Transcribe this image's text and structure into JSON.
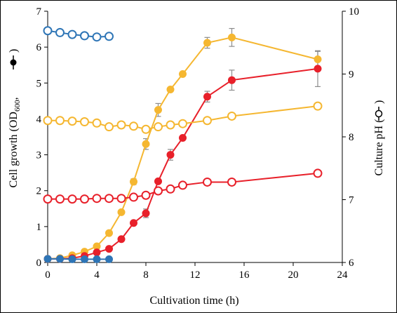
{
  "chart_data": {
    "type": "line",
    "title": "",
    "xlabel": "Cultivation time (h)",
    "ylabel_left": {
      "main": "Cell growth (OD",
      "sub": "600",
      "tail": ", "
    },
    "ylabel_right": "Culture pH (",
    "xlim": [
      0,
      24
    ],
    "xticks": [
      "0",
      "4",
      "8",
      "12",
      "16",
      "20",
      "24"
    ],
    "ylim_left": [
      0,
      7
    ],
    "yticks_left": [
      "0",
      "1",
      "2",
      "3",
      "4",
      "5",
      "6",
      "7"
    ],
    "ylim_right": [
      6,
      10
    ],
    "yticks_right": [
      "6",
      "7",
      "8",
      "9",
      "10"
    ],
    "grid": false,
    "legend": "none",
    "series": [
      {
        "axis": "left",
        "marker": "filled",
        "color": "#f5b731",
        "x": [
          0,
          1,
          2,
          3,
          4,
          5,
          6,
          7,
          8,
          9,
          10,
          11,
          13,
          15,
          22
        ],
        "y": [
          0.1,
          0.12,
          0.2,
          0.3,
          0.45,
          0.82,
          1.4,
          2.25,
          3.3,
          4.25,
          4.82,
          5.25,
          6.12,
          6.27,
          5.66
        ],
        "err": [
          0,
          0,
          0,
          0,
          0,
          0,
          0,
          0.08,
          0.15,
          0.18,
          0,
          0,
          0.15,
          0.25,
          0.22
        ]
      },
      {
        "axis": "left",
        "marker": "filled",
        "color": "#e8202a",
        "x": [
          0,
          1,
          2,
          3,
          4,
          5,
          6,
          7,
          8,
          9,
          10,
          11,
          13,
          15,
          22
        ],
        "y": [
          0.1,
          0.1,
          0.12,
          0.18,
          0.28,
          0.38,
          0.65,
          1.1,
          1.37,
          2.26,
          3.0,
          3.47,
          4.62,
          5.08,
          5.4
        ],
        "err": [
          0,
          0,
          0,
          0,
          0,
          0,
          0,
          0,
          0.12,
          0,
          0.15,
          0,
          0.15,
          0.28,
          0.5
        ]
      },
      {
        "axis": "left",
        "marker": "filled",
        "color": "#2e75b6",
        "x": [
          0,
          1,
          2,
          3,
          4,
          5
        ],
        "y": [
          0.1,
          0.1,
          0.09,
          0.09,
          0.09,
          0.09
        ],
        "err": [
          0,
          0,
          0,
          0,
          0,
          0
        ]
      },
      {
        "axis": "right",
        "marker": "open",
        "color": "#f5b731",
        "x": [
          0,
          1,
          2,
          3,
          4,
          5,
          6,
          7,
          8,
          9,
          10,
          11,
          13,
          15,
          22
        ],
        "y": [
          8.26,
          8.26,
          8.25,
          8.24,
          8.22,
          8.16,
          8.19,
          8.17,
          8.12,
          8.16,
          8.19,
          8.21,
          8.26,
          8.33,
          8.49
        ],
        "err": [
          0,
          0,
          0,
          0,
          0,
          0,
          0,
          0,
          0,
          0,
          0,
          0,
          0,
          0,
          0
        ]
      },
      {
        "axis": "right",
        "marker": "open",
        "color": "#e8202a",
        "x": [
          0,
          1,
          2,
          3,
          4,
          5,
          6,
          7,
          8,
          9,
          10,
          11,
          13,
          15,
          22
        ],
        "y": [
          7.01,
          7.01,
          7.01,
          7.01,
          7.02,
          7.02,
          7.02,
          7.04,
          7.07,
          7.14,
          7.17,
          7.23,
          7.28,
          7.28,
          7.42
        ],
        "err": [
          0,
          0,
          0,
          0,
          0,
          0,
          0,
          0,
          0,
          0.05,
          0.05,
          0,
          0,
          0,
          0
        ]
      },
      {
        "axis": "right",
        "marker": "open",
        "color": "#2e75b6",
        "x": [
          0,
          1,
          2,
          3,
          4,
          5
        ],
        "y": [
          9.69,
          9.66,
          9.63,
          9.61,
          9.59,
          9.6
        ],
        "err": [
          0,
          0,
          0,
          0,
          0,
          0
        ]
      }
    ]
  }
}
